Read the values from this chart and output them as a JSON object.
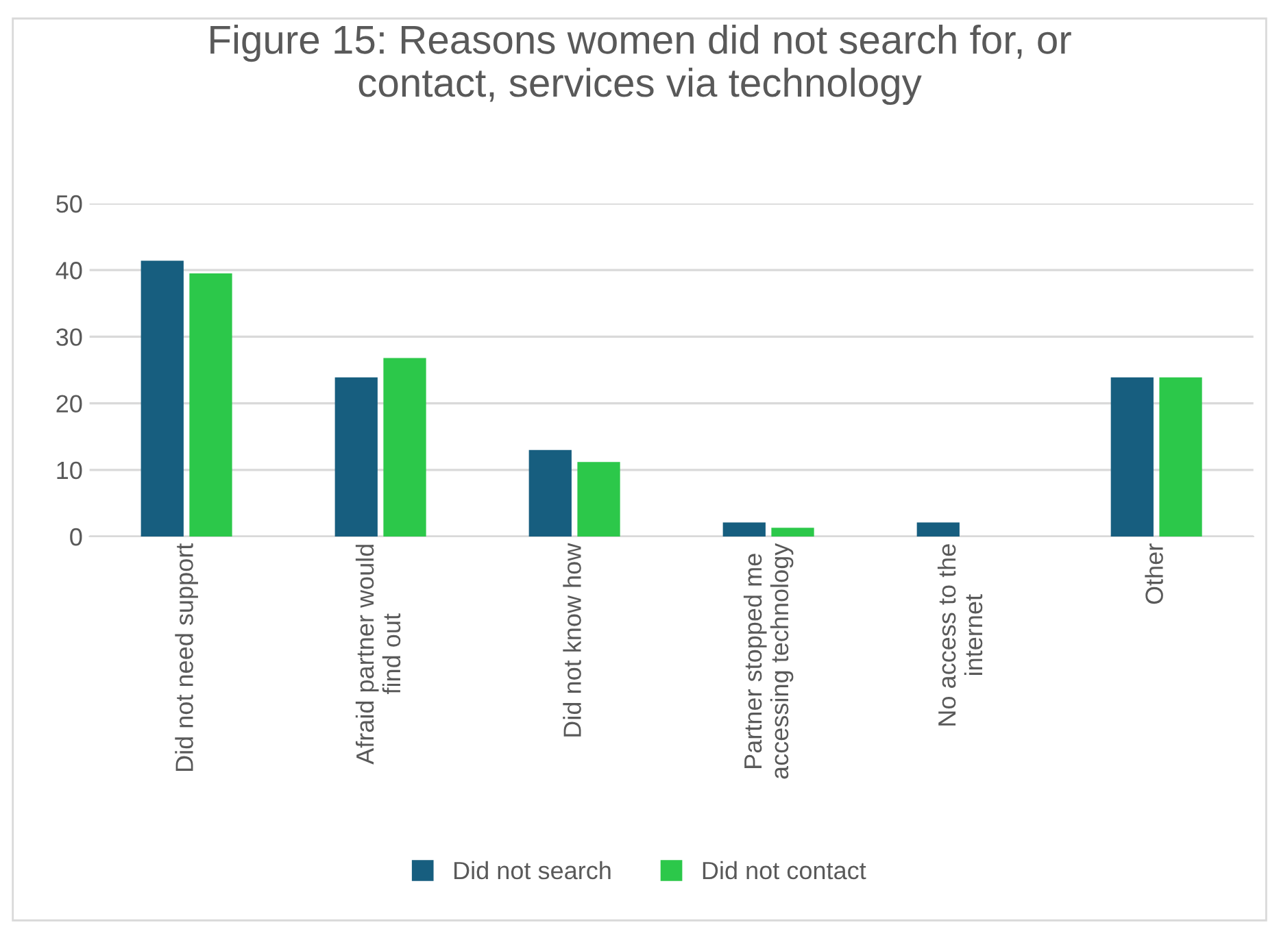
{
  "chart_data": {
    "type": "bar",
    "title": "Figure 15: Reasons women did not search for, or\ncontact, services via technology",
    "categories": [
      "Did not need support",
      "Afraid partner would\nfind out",
      "Did not know how",
      "Partner stopped me\naccessing technology",
      "No access to the\ninternet",
      "Other"
    ],
    "series": [
      {
        "name": "Did not search",
        "color": "#175e7f",
        "values": [
          41.4,
          23.9,
          13.0,
          2.1,
          2.1,
          23.9
        ]
      },
      {
        "name": "Did not contact",
        "color": "#2cc84a",
        "values": [
          39.5,
          26.8,
          11.2,
          1.3,
          0,
          23.9
        ]
      }
    ],
    "ylim": [
      0,
      50
    ],
    "yticks": [
      0,
      10,
      20,
      30,
      40,
      50
    ],
    "grid": "y",
    "legend": "bottom"
  }
}
